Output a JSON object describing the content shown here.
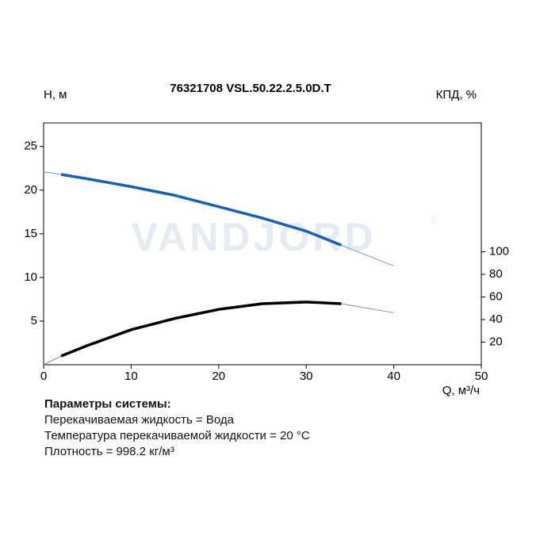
{
  "chart_data": {
    "type": "line",
    "title": "76321708 VSL.50.22.2.5.0D.T",
    "y_label": "H, м",
    "y2_label": "КПД, %",
    "x_label": "Q, м³/ч",
    "watermark": "VANDJORD",
    "watermark_mark": "®",
    "x": [
      0,
      2,
      5,
      10,
      15,
      20,
      25,
      30,
      34,
      40
    ],
    "series": [
      {
        "color": "#6f9fd6",
        "line_width": 1,
        "values": [
          22.1,
          21.8,
          21.3,
          20.4,
          19.4,
          18.1,
          16.8,
          15.3,
          13.7,
          11.3
        ]
      },
      {
        "color": "#1560bd",
        "line_width": 3.5,
        "values": [
          null,
          21.8,
          21.3,
          20.4,
          19.4,
          18.1,
          16.8,
          15.3,
          13.7,
          null
        ]
      },
      {
        "color": "#888888",
        "line_width": 1,
        "axis": "y2",
        "values": [
          0,
          7.7,
          17,
          31,
          41,
          49,
          54,
          55.5,
          54,
          46
        ]
      },
      {
        "color": "#000000",
        "line_width": 3.5,
        "axis": "y2",
        "values": [
          null,
          7.7,
          17,
          31,
          41,
          49,
          54,
          55.5,
          54,
          null
        ]
      }
    ],
    "xlim": [
      0,
      50
    ],
    "xticks": [
      0,
      10,
      20,
      30,
      40,
      50
    ],
    "ylim": [
      0,
      27.7
    ],
    "yticks": [
      5,
      10,
      15,
      20,
      25
    ],
    "y2lim": [
      0,
      214
    ],
    "y2ticks": [
      20,
      40,
      60,
      80,
      100
    ],
    "grid": false
  },
  "system_parameters": {
    "title": "Параметры системы:",
    "lines": [
      "Перекачиваемая жидкость = Вода",
      "Температура перекачиваемой жидкости = 20 °C",
      "Плотность = 998.2 кг/м³"
    ]
  }
}
